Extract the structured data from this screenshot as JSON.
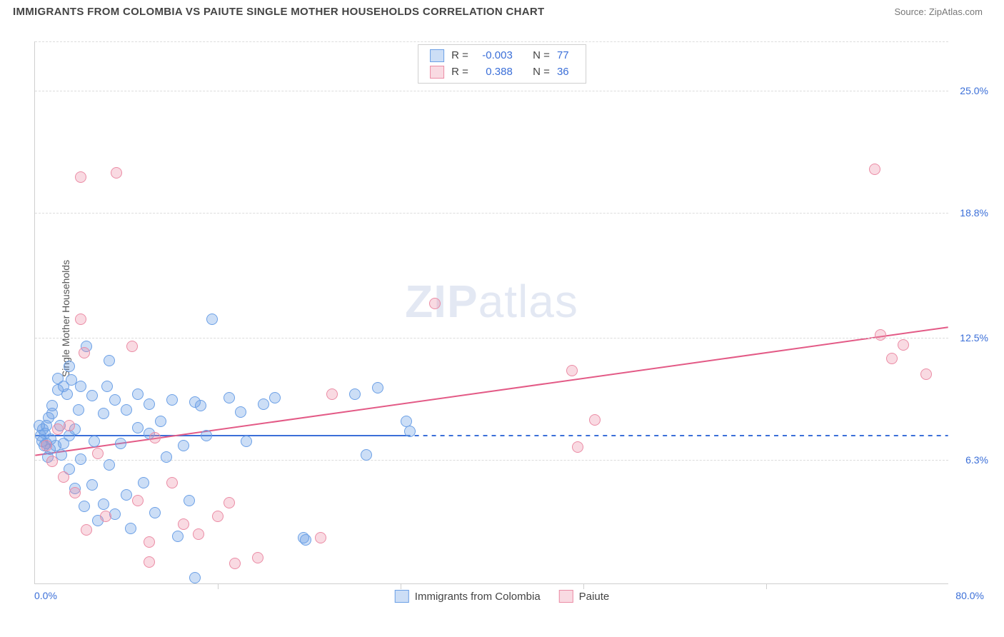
{
  "title": "IMMIGRANTS FROM COLOMBIA VS PAIUTE SINGLE MOTHER HOUSEHOLDS CORRELATION CHART",
  "source_label": "Source: ",
  "source_name": "ZipAtlas.com",
  "watermark_bold": "ZIP",
  "watermark_rest": "atlas",
  "chart": {
    "type": "scatter",
    "xlim": [
      0,
      80
    ],
    "ylim": [
      0,
      27.5
    ],
    "x_label_min": "0.0%",
    "x_label_max": "80.0%",
    "x_ticks": [
      16,
      32,
      48,
      64
    ],
    "y_gridlines": [
      6.3,
      12.5,
      18.8,
      25.0,
      27.5
    ],
    "y_tick_labels": [
      "6.3%",
      "12.5%",
      "18.8%",
      "25.0%"
    ],
    "y_axis_title": "Single Mother Households",
    "background_color": "#ffffff",
    "grid_color": "#dcdcdc",
    "axis_color": "#cfcfcf",
    "point_radius": 8,
    "point_stroke_width": 1.4,
    "series": [
      {
        "name": "Immigrants from Colombia",
        "fill": "rgba(108,160,230,0.35)",
        "stroke": "#6ca0e6",
        "r": -0.003,
        "n": 77,
        "trend": {
          "x1": 0,
          "y1": 7.5,
          "x2": 32.5,
          "y2": 7.5,
          "dash_x2": 80,
          "color": "#3b6fd8",
          "width": 2
        },
        "points": [
          [
            0.5,
            7.5
          ],
          [
            0.7,
            7.8
          ],
          [
            0.6,
            7.2
          ],
          [
            0.8,
            7.0
          ],
          [
            0.9,
            7.6
          ],
          [
            1.0,
            8.0
          ],
          [
            1.0,
            7.1
          ],
          [
            1.2,
            8.4
          ],
          [
            1.3,
            6.8
          ],
          [
            1.4,
            7.3
          ],
          [
            1.5,
            8.6
          ],
          [
            1.5,
            9.0
          ],
          [
            1.8,
            7.0
          ],
          [
            2.0,
            9.8
          ],
          [
            2.0,
            10.4
          ],
          [
            2.2,
            8.0
          ],
          [
            2.3,
            6.5
          ],
          [
            2.5,
            7.1
          ],
          [
            2.5,
            10.0
          ],
          [
            2.8,
            9.6
          ],
          [
            3.0,
            5.8
          ],
          [
            3.0,
            11.0
          ],
          [
            3.2,
            10.3
          ],
          [
            3.5,
            7.8
          ],
          [
            3.5,
            4.8
          ],
          [
            3.8,
            8.8
          ],
          [
            4.0,
            6.3
          ],
          [
            4.0,
            10.0
          ],
          [
            4.3,
            3.9
          ],
          [
            4.5,
            12.0
          ],
          [
            5.0,
            9.5
          ],
          [
            5.0,
            5.0
          ],
          [
            5.2,
            7.2
          ],
          [
            5.5,
            3.2
          ],
          [
            6.0,
            8.6
          ],
          [
            6.0,
            4.0
          ],
          [
            6.3,
            10.0
          ],
          [
            6.5,
            6.0
          ],
          [
            7.0,
            9.3
          ],
          [
            7.0,
            3.5
          ],
          [
            7.5,
            7.1
          ],
          [
            8.0,
            8.8
          ],
          [
            8.0,
            4.5
          ],
          [
            8.4,
            2.8
          ],
          [
            9.0,
            7.9
          ],
          [
            9.0,
            9.6
          ],
          [
            9.5,
            5.1
          ],
          [
            10.0,
            7.6
          ],
          [
            10.0,
            9.1
          ],
          [
            10.5,
            3.6
          ],
          [
            11.0,
            8.2
          ],
          [
            11.5,
            6.4
          ],
          [
            12.0,
            9.3
          ],
          [
            12.5,
            2.4
          ],
          [
            13.0,
            7.0
          ],
          [
            13.5,
            4.2
          ],
          [
            14.0,
            9.2
          ],
          [
            14.5,
            9.0
          ],
          [
            15.0,
            7.5
          ],
          [
            15.5,
            13.4
          ],
          [
            17.0,
            9.4
          ],
          [
            18.0,
            8.7
          ],
          [
            18.5,
            7.2
          ],
          [
            20.0,
            9.1
          ],
          [
            21.0,
            9.4
          ],
          [
            23.5,
            2.3
          ],
          [
            23.7,
            2.2
          ],
          [
            28.0,
            9.6
          ],
          [
            29.0,
            6.5
          ],
          [
            30.0,
            9.9
          ],
          [
            32.5,
            8.2
          ],
          [
            32.8,
            7.7
          ],
          [
            14.0,
            0.3
          ],
          [
            6.5,
            11.3
          ],
          [
            3.0,
            7.5
          ],
          [
            1.1,
            6.4
          ],
          [
            0.4,
            8.0
          ]
        ]
      },
      {
        "name": "Paiute",
        "fill": "rgba(235,140,165,0.32)",
        "stroke": "#eb8ca5",
        "r": 0.388,
        "n": 36,
        "trend": {
          "x1": 0,
          "y1": 6.5,
          "x2": 80,
          "y2": 13.0,
          "color": "#e35a86",
          "width": 2
        },
        "points": [
          [
            1.0,
            7.0
          ],
          [
            1.5,
            6.2
          ],
          [
            2.0,
            7.8
          ],
          [
            2.5,
            5.4
          ],
          [
            3.0,
            8.0
          ],
          [
            3.5,
            4.6
          ],
          [
            4.0,
            13.4
          ],
          [
            4.5,
            2.7
          ],
          [
            5.5,
            6.6
          ],
          [
            6.2,
            3.4
          ],
          [
            7.1,
            20.8
          ],
          [
            8.5,
            12.0
          ],
          [
            9.0,
            4.2
          ],
          [
            10.0,
            2.1
          ],
          [
            10.5,
            7.4
          ],
          [
            4.3,
            11.7
          ],
          [
            12.0,
            5.1
          ],
          [
            13.0,
            3.0
          ],
          [
            14.3,
            2.5
          ],
          [
            16.0,
            3.4
          ],
          [
            17.0,
            4.1
          ],
          [
            17.5,
            1.0
          ],
          [
            19.5,
            1.3
          ],
          [
            25.0,
            2.3
          ],
          [
            26.0,
            9.6
          ],
          [
            35.0,
            14.2
          ],
          [
            47.0,
            10.8
          ],
          [
            47.5,
            6.9
          ],
          [
            49.0,
            8.3
          ],
          [
            73.5,
            21.0
          ],
          [
            74.0,
            12.6
          ],
          [
            75.0,
            11.4
          ],
          [
            76.0,
            12.1
          ],
          [
            78.0,
            10.6
          ],
          [
            10.0,
            1.1
          ],
          [
            4.0,
            20.6
          ]
        ]
      }
    ],
    "legend_top": {
      "r_label": "R =",
      "n_label": "N ="
    },
    "legend_bottom": {
      "series1": "Immigrants from Colombia",
      "series2": "Paiute"
    }
  }
}
